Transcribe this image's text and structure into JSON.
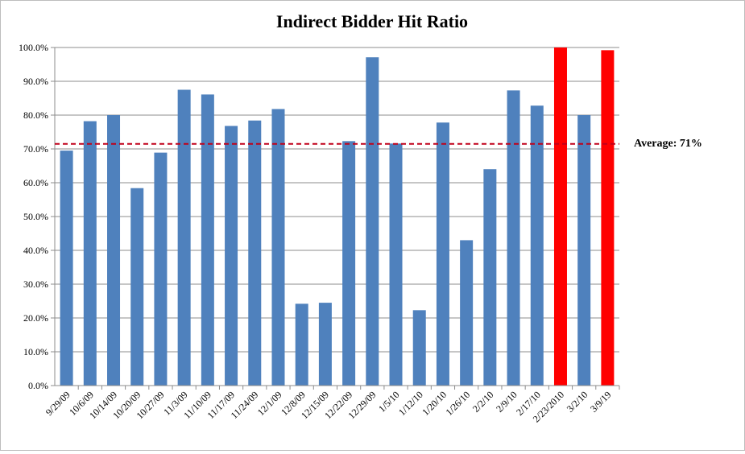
{
  "chart_data": {
    "type": "bar",
    "title": "Indirect Bidder Hit Ratio",
    "xlabel": "",
    "ylabel": "",
    "ylim": [
      0,
      100
    ],
    "y_ticks": [
      0,
      10,
      20,
      30,
      40,
      50,
      60,
      70,
      80,
      90,
      100
    ],
    "y_tick_labels": [
      "0.0%",
      "10.0%",
      "20.0%",
      "30.0%",
      "40.0%",
      "50.0%",
      "60.0%",
      "70.0%",
      "80.0%",
      "90.0%",
      "100.0%"
    ],
    "grid": true,
    "legend": "none",
    "categories": [
      "9/29/09",
      "10/6/09",
      "10/14/09",
      "10/20/09",
      "10/27/09",
      "11/3/09",
      "11/10/09",
      "11/17/09",
      "11/24/09",
      "12/1/09",
      "12/8/09",
      "12/15/09",
      "12/22/09",
      "12/29/09",
      "1/5/10",
      "1/12/10",
      "1/20/10",
      "1/26/10",
      "2/2/10",
      "2/9/10",
      "2/17/10",
      "2/23/2010",
      "3/2/10",
      "3/9/19"
    ],
    "values": [
      69.5,
      78.2,
      80.0,
      58.4,
      68.9,
      87.5,
      86.1,
      76.8,
      78.4,
      81.8,
      24.2,
      24.5,
      72.3,
      97.1,
      71.6,
      22.3,
      77.8,
      43.0,
      64.0,
      87.3,
      82.8,
      100.0,
      80.0,
      99.2
    ],
    "highlighted": [
      "2/23/2010",
      "3/9/19"
    ],
    "reference_line": {
      "value": 71,
      "label": "Average: 71%"
    },
    "colors": {
      "bar": "#4f81bd",
      "highlight": "#ff0000",
      "average_line": "#c0001a",
      "grid": "#8c8c8c",
      "axis": "#8c8c8c"
    }
  }
}
